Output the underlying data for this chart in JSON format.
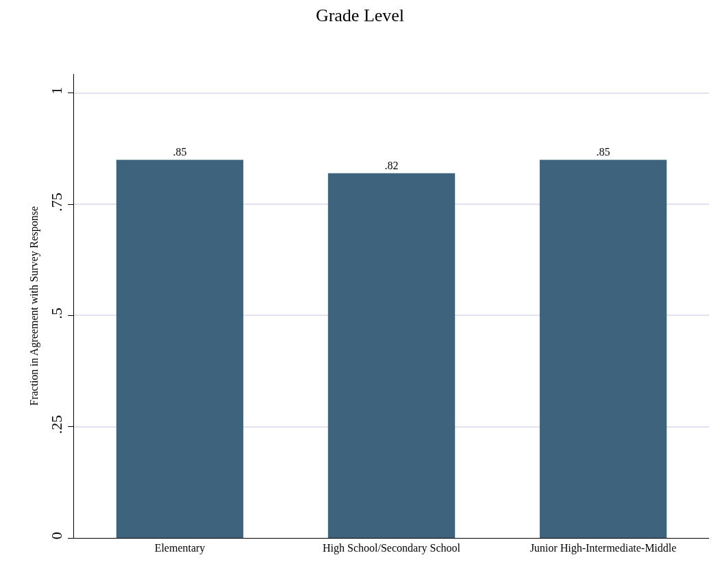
{
  "chart_data": {
    "type": "bar",
    "title": "Grade Level",
    "ylabel": "Fraction in Agreement with Survey Response",
    "categories": [
      "Elementary",
      "High School/Secondary School",
      "Junior High-Intermediate-Middle"
    ],
    "values": [
      0.85,
      0.82,
      0.85
    ],
    "value_labels": [
      ".85",
      ".82",
      ".85"
    ],
    "color": "#3e647d",
    "ylim": [
      0,
      1.043
    ],
    "yticks": [
      0,
      {
        "value": 0.25,
        "label": ".25"
      },
      {
        "value": 0.5,
        "label": ".5"
      },
      {
        "value": 0.75,
        "label": ".75"
      },
      1
    ],
    "grid": "y",
    "legend": false
  }
}
